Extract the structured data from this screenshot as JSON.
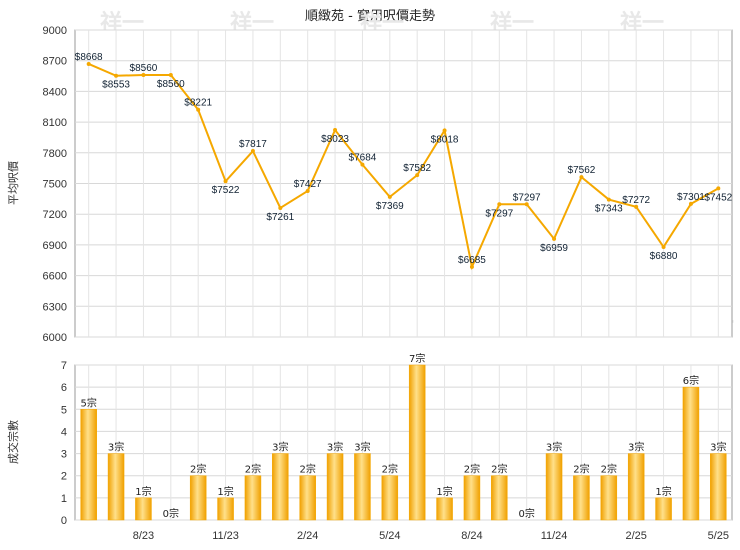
{
  "chart_data": [
    {
      "type": "line",
      "title": "順緻苑 - 實用呎價走勢",
      "ylabel": "平均呎價",
      "ylim": [
        6000,
        9000
      ],
      "yticks": [
        6000,
        6300,
        6600,
        6900,
        7200,
        7500,
        7800,
        8100,
        8400,
        8700,
        9000
      ],
      "grid": true,
      "line_color": "#f5a800",
      "point_labels": [
        "$8668",
        "$8553",
        "$8560",
        "$8560",
        "$8221",
        "$7522",
        "$7817",
        "$7261",
        "$7427",
        "$8023",
        "$7684",
        "$7369",
        "$7582",
        "$8018",
        "$6685",
        "$7297",
        "$7297",
        "$6959",
        "$7562",
        "$7343",
        "$7272",
        "$6880",
        "$7301",
        "$7452"
      ],
      "values": [
        8668,
        8553,
        8560,
        8560,
        8221,
        7522,
        7817,
        7261,
        7427,
        8023,
        7684,
        7369,
        7582,
        8018,
        6685,
        7297,
        7297,
        6959,
        7562,
        7343,
        7272,
        6880,
        7301,
        7452
      ]
    },
    {
      "type": "bar",
      "ylabel": "成交宗數",
      "ylim": [
        0,
        7
      ],
      "yticks": [
        0,
        1,
        2,
        3,
        4,
        5,
        6,
        7
      ],
      "bar_color": "#f5a800",
      "values": [
        5,
        3,
        1,
        0,
        2,
        1,
        2,
        3,
        2,
        3,
        3,
        2,
        7,
        1,
        2,
        2,
        0,
        3,
        2,
        2,
        3,
        1,
        6,
        3
      ],
      "bar_labels": [
        "5宗",
        "3宗",
        "1宗",
        "0宗",
        "2宗",
        "1宗",
        "2宗",
        "3宗",
        "2宗",
        "3宗",
        "3宗",
        "2宗",
        "7宗",
        "1宗",
        "2宗",
        "2宗",
        "0宗",
        "3宗",
        "2宗",
        "2宗",
        "3宗",
        "1宗",
        "6宗",
        "3宗"
      ],
      "x_tick_labels": [
        {
          "index": 2,
          "label": "8/23"
        },
        {
          "index": 5,
          "label": "11/23"
        },
        {
          "index": 8,
          "label": "2/24"
        },
        {
          "index": 11,
          "label": "5/24"
        },
        {
          "index": 14,
          "label": "8/24"
        },
        {
          "index": 17,
          "label": "11/24"
        },
        {
          "index": 20,
          "label": "2/25"
        },
        {
          "index": 23,
          "label": "5/25"
        }
      ]
    }
  ],
  "watermark": "祥一"
}
